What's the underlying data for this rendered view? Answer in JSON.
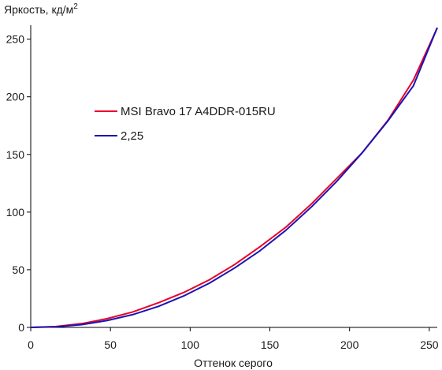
{
  "chart_data": {
    "type": "line",
    "ylabel": "Яркость, кд/м",
    "ylabel_superscript": "2",
    "xlabel": "Оттенок серого",
    "xlim": [
      0,
      255
    ],
    "ylim": [
      0,
      260
    ],
    "x_ticks": [
      "0",
      "50",
      "100",
      "150",
      "200",
      "250"
    ],
    "y_ticks": [
      "0",
      "50",
      "100",
      "150",
      "200",
      "250"
    ],
    "grid": false,
    "legend_position": "center-left",
    "series": [
      {
        "name": "MSI Bravo 17 A4DDR-015RU",
        "color": "#e8002a",
        "points": [
          [
            0,
            0
          ],
          [
            16,
            0.8
          ],
          [
            32,
            3.3
          ],
          [
            48,
            7.6
          ],
          [
            64,
            13.4
          ],
          [
            80,
            21.3
          ],
          [
            96,
            30.3
          ],
          [
            112,
            41.2
          ],
          [
            128,
            54.6
          ],
          [
            144,
            70.2
          ],
          [
            160,
            86.9
          ],
          [
            176,
            107.0
          ],
          [
            192,
            129.3
          ],
          [
            208,
            151.6
          ],
          [
            224,
            179.5
          ],
          [
            240,
            214.4
          ],
          [
            255,
            259.8
          ]
        ]
      },
      {
        "name": "2,25",
        "color": "#1a14b4",
        "points": [
          [
            0,
            0
          ],
          [
            16,
            0.5
          ],
          [
            32,
            2.4
          ],
          [
            48,
            6.0
          ],
          [
            64,
            11.1
          ],
          [
            80,
            18.2
          ],
          [
            96,
            27.3
          ],
          [
            112,
            38.3
          ],
          [
            128,
            51.6
          ],
          [
            144,
            66.7
          ],
          [
            160,
            84.2
          ],
          [
            176,
            104.4
          ],
          [
            192,
            126.7
          ],
          [
            208,
            151.6
          ],
          [
            224,
            179.0
          ],
          [
            240,
            209.5
          ],
          [
            255,
            260.0
          ]
        ]
      }
    ]
  }
}
